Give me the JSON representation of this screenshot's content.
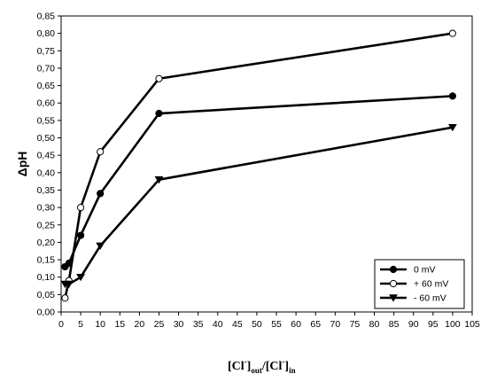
{
  "chart_data": {
    "type": "line",
    "xlabel": "[Cl⁻]out/[Cl⁻]in",
    "xlabel_parts": {
      "main_left": "[Cl",
      "sup_left": "-",
      "mid": "]",
      "sub_left": "out",
      "slash": "/[Cl",
      "sup_right": "-",
      "end": "]",
      "sub_right": "in"
    },
    "ylabel": "ΔpH",
    "xlim": [
      0,
      105
    ],
    "ylim": [
      0.0,
      0.85
    ],
    "x_ticks": [
      "0",
      "5",
      "10",
      "15",
      "20",
      "25",
      "30",
      "35",
      "40",
      "45",
      "50",
      "55",
      "60",
      "65",
      "70",
      "75",
      "80",
      "85",
      "90",
      "95",
      "100",
      "105"
    ],
    "y_ticks": [
      "0,00",
      "0,05",
      "0,10",
      "0,15",
      "0,20",
      "0,25",
      "0,30",
      "0,35",
      "0,40",
      "0,45",
      "0,50",
      "0,55",
      "0,60",
      "0,65",
      "0,70",
      "0,75",
      "0,80",
      "0,85"
    ],
    "grid": false,
    "legend_position": "bottom-right",
    "x": [
      1,
      5,
      10,
      25,
      100
    ],
    "series": [
      {
        "name": "0 mV",
        "marker": "filled-circle",
        "values": [
          0.13,
          0.22,
          0.34,
          0.57,
          0.62
        ]
      },
      {
        "name": "+ 60 mV",
        "marker": "open-circle",
        "values": [
          0.04,
          0.3,
          0.46,
          0.67,
          0.8
        ]
      },
      {
        "name": "- 60 mV",
        "marker": "filled-triangle-down",
        "values": [
          0.08,
          0.1,
          0.19,
          0.38,
          0.53
        ]
      }
    ],
    "extra_points": [
      {
        "series": "0 mV",
        "x": 2,
        "y": 0.14
      },
      {
        "series": "+ 60 mV",
        "x": 2,
        "y": 0.09
      },
      {
        "series": "- 60 mV",
        "x": 2,
        "y": 0.08
      }
    ]
  }
}
